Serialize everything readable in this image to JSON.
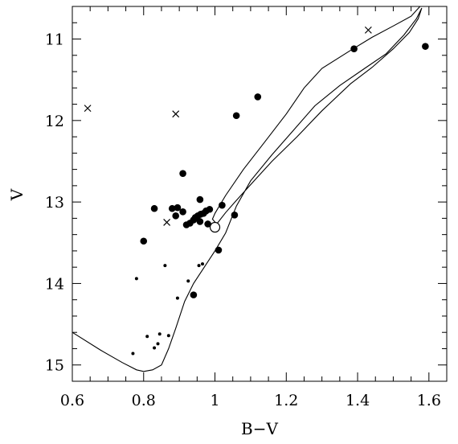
{
  "chart_data": {
    "type": "scatter",
    "xlabel": "B−V",
    "ylabel": "V",
    "xlim": [
      0.6,
      1.65
    ],
    "ylim": [
      15.2,
      10.6
    ],
    "y_inverted": true,
    "grid": false,
    "xticks": [
      0.6,
      0.8,
      1.0,
      1.2,
      1.4,
      1.6
    ],
    "xtick_labels": [
      "0.6",
      "0.8",
      "1",
      "1.2",
      "1.4",
      "1.6"
    ],
    "yticks": [
      11,
      12,
      13,
      14,
      15
    ],
    "ytick_labels": [
      "11",
      "12",
      "13",
      "14",
      "15"
    ],
    "series": [
      {
        "marker": "large-dot",
        "points": [
          [
            1.59,
            11.09
          ],
          [
            1.39,
            11.12
          ],
          [
            1.12,
            11.71
          ],
          [
            1.06,
            11.94
          ],
          [
            0.91,
            12.65
          ],
          [
            0.958,
            12.97
          ],
          [
            0.83,
            13.08
          ],
          [
            0.88,
            13.08
          ],
          [
            0.895,
            13.07
          ],
          [
            0.91,
            13.12
          ],
          [
            0.89,
            13.17
          ],
          [
            0.92,
            13.28
          ],
          [
            0.93,
            13.26
          ],
          [
            0.94,
            13.22
          ],
          [
            0.945,
            13.19
          ],
          [
            0.952,
            13.17
          ],
          [
            0.96,
            13.15
          ],
          [
            0.968,
            13.14
          ],
          [
            0.975,
            13.11
          ],
          [
            0.985,
            13.09
          ],
          [
            1.02,
            13.04
          ],
          [
            0.958,
            13.24
          ],
          [
            0.98,
            13.27
          ],
          [
            1.055,
            13.16
          ],
          [
            0.8,
            13.48
          ],
          [
            1.01,
            13.59
          ],
          [
            0.94,
            14.14
          ]
        ]
      },
      {
        "marker": "small-dot",
        "points": [
          [
            0.86,
            13.78
          ],
          [
            0.955,
            13.78
          ],
          [
            0.965,
            13.76
          ],
          [
            0.78,
            13.94
          ],
          [
            0.925,
            13.97
          ],
          [
            0.895,
            14.18
          ],
          [
            0.81,
            14.65
          ],
          [
            0.87,
            14.64
          ],
          [
            0.845,
            14.62
          ],
          [
            0.84,
            14.74
          ],
          [
            0.83,
            14.79
          ],
          [
            0.77,
            14.86
          ]
        ]
      },
      {
        "marker": "cross",
        "points": [
          [
            0.643,
            11.85
          ],
          [
            0.89,
            11.92
          ],
          [
            1.43,
            10.89
          ],
          [
            0.865,
            13.25
          ]
        ]
      },
      {
        "marker": "open-circle",
        "points": [
          [
            1.0,
            13.31
          ]
        ]
      }
    ],
    "isochrone": [
      [
        0.6,
        14.6
      ],
      [
        0.68,
        14.82
      ],
      [
        0.74,
        14.97
      ],
      [
        0.78,
        15.06
      ],
      [
        0.8,
        15.08
      ],
      [
        0.825,
        15.06
      ],
      [
        0.85,
        15.0
      ],
      [
        0.87,
        14.8
      ],
      [
        0.89,
        14.55
      ],
      [
        0.915,
        14.22
      ],
      [
        0.94,
        14.0
      ],
      [
        0.97,
        13.8
      ],
      [
        1.0,
        13.6
      ],
      [
        1.03,
        13.38
      ],
      [
        1.06,
        13.05
      ],
      [
        1.1,
        12.74
      ],
      [
        1.16,
        12.42
      ],
      [
        1.22,
        12.12
      ],
      [
        1.28,
        11.82
      ],
      [
        1.35,
        11.57
      ],
      [
        1.42,
        11.36
      ],
      [
        1.48,
        11.18
      ],
      [
        1.53,
        10.95
      ],
      [
        1.565,
        10.75
      ],
      [
        1.58,
        10.62
      ],
      [
        1.57,
        10.75
      ],
      [
        1.545,
        10.92
      ],
      [
        1.5,
        11.12
      ],
      [
        1.44,
        11.35
      ],
      [
        1.38,
        11.55
      ],
      [
        1.3,
        11.88
      ],
      [
        1.23,
        12.2
      ],
      [
        1.16,
        12.5
      ],
      [
        1.11,
        12.74
      ],
      [
        1.06,
        12.98
      ],
      [
        1.03,
        13.13
      ],
      [
        1.005,
        13.27
      ],
      [
        0.993,
        13.21
      ],
      [
        1.0,
        13.14
      ],
      [
        1.03,
        12.92
      ],
      [
        1.08,
        12.6
      ],
      [
        1.14,
        12.26
      ],
      [
        1.2,
        11.92
      ],
      [
        1.25,
        11.6
      ],
      [
        1.3,
        11.36
      ],
      [
        1.38,
        11.14
      ],
      [
        1.44,
        10.98
      ],
      [
        1.5,
        10.84
      ],
      [
        1.55,
        10.72
      ],
      [
        1.575,
        10.6
      ]
    ]
  }
}
